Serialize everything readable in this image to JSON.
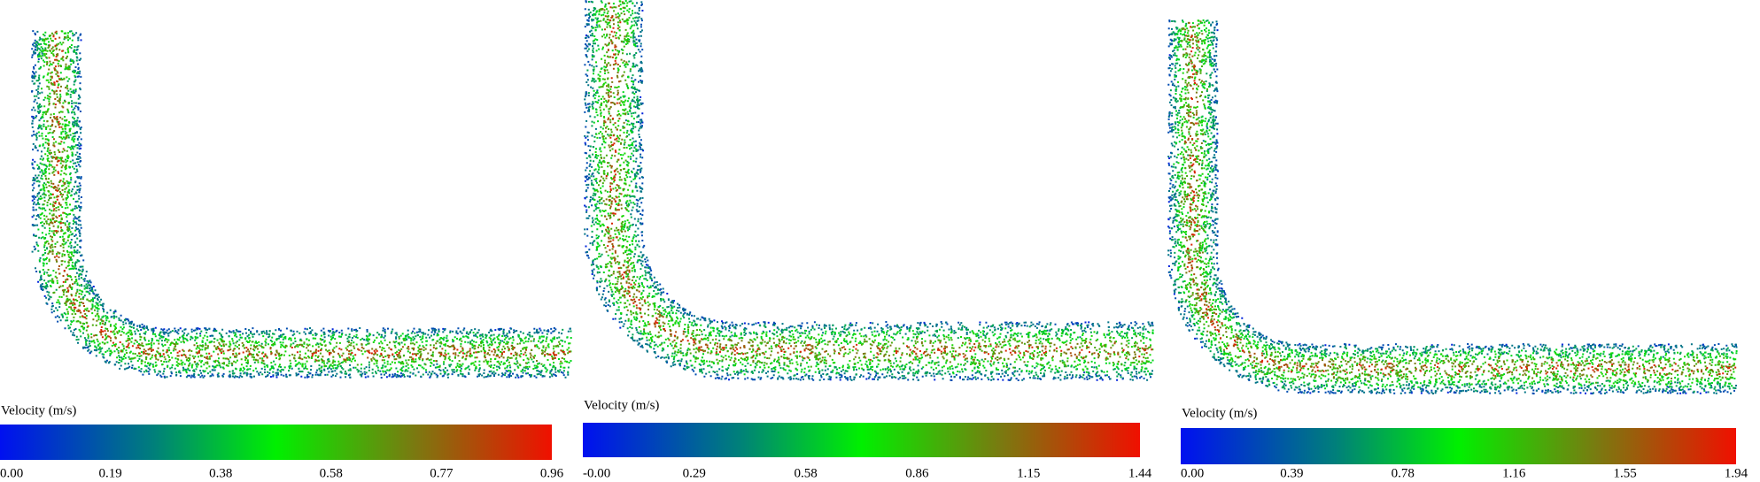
{
  "panels": [
    {
      "colorbar": {
        "label": "Velocity (m/s)",
        "ticks": [
          "0.00",
          "0.19",
          "0.38",
          "0.58",
          "0.77",
          "0.96"
        ]
      }
    },
    {
      "colorbar": {
        "label": "Velocity (m/s)",
        "ticks": [
          "-0.00",
          "0.29",
          "0.58",
          "0.86",
          "1.15",
          "1.44"
        ]
      }
    },
    {
      "colorbar": {
        "label": "Velocity (m/s)",
        "ticks": [
          "0.00",
          "0.39",
          "0.78",
          "1.16",
          "1.55",
          "1.94"
        ]
      }
    }
  ]
}
